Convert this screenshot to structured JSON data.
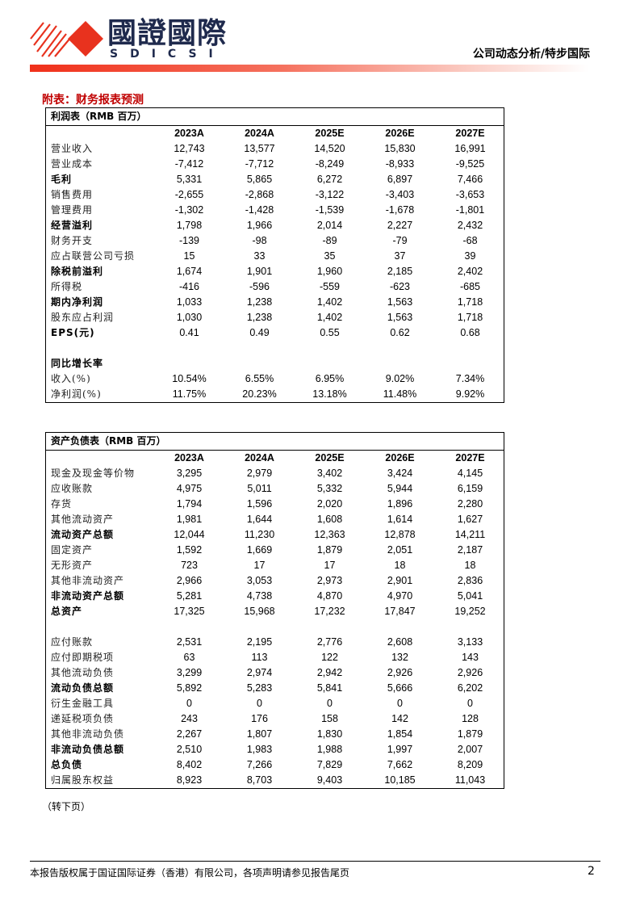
{
  "header": {
    "logo_text": "國證國際",
    "logo_subtext": "SDICSI",
    "report_type": "公司动态分析/特步国际",
    "brand_color": "#e8321e"
  },
  "section_title": "附表：财务报表预测",
  "income_statement": {
    "title": "利润表（RMB 百万）",
    "columns": [
      "2023A",
      "2024A",
      "2025E",
      "2026E",
      "2027E"
    ],
    "rows": [
      {
        "label": "营业收入",
        "bold": false,
        "values": [
          "12,743",
          "13,577",
          "14,520",
          "15,830",
          "16,991"
        ]
      },
      {
        "label": "营业成本",
        "bold": false,
        "values": [
          "-7,412",
          "-7,712",
          "-8,249",
          "-8,933",
          "-9,525"
        ]
      },
      {
        "label": "毛利",
        "bold": true,
        "values": [
          "5,331",
          "5,865",
          "6,272",
          "6,897",
          "7,466"
        ]
      },
      {
        "label": "销售费用",
        "bold": false,
        "values": [
          "-2,655",
          "-2,868",
          "-3,122",
          "-3,403",
          "-3,653"
        ]
      },
      {
        "label": "管理费用",
        "bold": false,
        "values": [
          "-1,302",
          "-1,428",
          "-1,539",
          "-1,678",
          "-1,801"
        ]
      },
      {
        "label": "经营溢利",
        "bold": true,
        "values": [
          "1,798",
          "1,966",
          "2,014",
          "2,227",
          "2,432"
        ]
      },
      {
        "label": "财务开支",
        "bold": false,
        "values": [
          "-139",
          "-98",
          "-89",
          "-79",
          "-68"
        ]
      },
      {
        "label": "应占联营公司亏损",
        "bold": false,
        "values": [
          "15",
          "33",
          "35",
          "37",
          "39"
        ]
      },
      {
        "label": "除税前溢利",
        "bold": true,
        "values": [
          "1,674",
          "1,901",
          "1,960",
          "2,185",
          "2,402"
        ]
      },
      {
        "label": "所得税",
        "bold": false,
        "values": [
          "-416",
          "-596",
          "-559",
          "-623",
          "-685"
        ]
      },
      {
        "label": "期内净利润",
        "bold": true,
        "values": [
          "1,033",
          "1,238",
          "1,402",
          "1,563",
          "1,718"
        ]
      },
      {
        "label": "股东应占利润",
        "bold": false,
        "values": [
          "1,030",
          "1,238",
          "1,402",
          "1,563",
          "1,718"
        ]
      },
      {
        "label": "EPS(元)",
        "bold": true,
        "values": [
          "0.41",
          "0.49",
          "0.55",
          "0.62",
          "0.68"
        ]
      },
      {
        "label": "",
        "bold": false,
        "values": [
          "",
          "",
          "",
          "",
          ""
        ]
      },
      {
        "label": "同比增长率",
        "bold": true,
        "values": [
          "",
          "",
          "",
          "",
          ""
        ]
      },
      {
        "label": "收入(%)",
        "bold": false,
        "values": [
          "10.54%",
          "6.55%",
          "6.95%",
          "9.02%",
          "7.34%"
        ]
      },
      {
        "label": "净利润(%)",
        "bold": false,
        "values": [
          "11.75%",
          "20.23%",
          "13.18%",
          "11.48%",
          "9.92%"
        ]
      }
    ]
  },
  "balance_sheet": {
    "title": "资产负债表（RMB 百万）",
    "columns": [
      "2023A",
      "2024A",
      "2025E",
      "2026E",
      "2027E"
    ],
    "rows": [
      {
        "label": "现金及现金等价物",
        "bold": false,
        "values": [
          "3,295",
          "2,979",
          "3,402",
          "3,424",
          "4,145"
        ]
      },
      {
        "label": "应收账款",
        "bold": false,
        "values": [
          "4,975",
          "5,011",
          "5,332",
          "5,944",
          "6,159"
        ]
      },
      {
        "label": "存货",
        "bold": false,
        "values": [
          "1,794",
          "1,596",
          "2,020",
          "1,896",
          "2,280"
        ]
      },
      {
        "label": "其他流动资产",
        "bold": false,
        "values": [
          "1,981",
          "1,644",
          "1,608",
          "1,614",
          "1,627"
        ]
      },
      {
        "label": "流动资产总额",
        "bold": true,
        "values": [
          "12,044",
          "11,230",
          "12,363",
          "12,878",
          "14,211"
        ]
      },
      {
        "label": "固定资产",
        "bold": false,
        "values": [
          "1,592",
          "1,669",
          "1,879",
          "2,051",
          "2,187"
        ]
      },
      {
        "label": "无形资产",
        "bold": false,
        "values": [
          "723",
          "17",
          "17",
          "18",
          "18"
        ]
      },
      {
        "label": "其他非流动资产",
        "bold": false,
        "values": [
          "2,966",
          "3,053",
          "2,973",
          "2,901",
          "2,836"
        ]
      },
      {
        "label": "非流动资产总额",
        "bold": true,
        "values": [
          "5,281",
          "4,738",
          "4,870",
          "4,970",
          "5,041"
        ]
      },
      {
        "label": "总资产",
        "bold": true,
        "values": [
          "17,325",
          "15,968",
          "17,232",
          "17,847",
          "19,252"
        ]
      },
      {
        "label": "",
        "bold": false,
        "values": [
          "",
          "",
          "",
          "",
          ""
        ]
      },
      {
        "label": "应付账款",
        "bold": false,
        "values": [
          "2,531",
          "2,195",
          "2,776",
          "2,608",
          "3,133"
        ]
      },
      {
        "label": "应付即期税项",
        "bold": false,
        "values": [
          "63",
          "113",
          "122",
          "132",
          "143"
        ]
      },
      {
        "label": "其他流动负债",
        "bold": false,
        "values": [
          "3,299",
          "2,974",
          "2,942",
          "2,926",
          "2,926"
        ]
      },
      {
        "label": "流动负债总额",
        "bold": true,
        "values": [
          "5,892",
          "5,283",
          "5,841",
          "5,666",
          "6,202"
        ]
      },
      {
        "label": "衍生金融工具",
        "bold": false,
        "values": [
          "0",
          "0",
          "0",
          "0",
          "0"
        ]
      },
      {
        "label": "递延税项负债",
        "bold": false,
        "values": [
          "243",
          "176",
          "158",
          "142",
          "128"
        ]
      },
      {
        "label": "其他非流动负债",
        "bold": false,
        "values": [
          "2,267",
          "1,807",
          "1,830",
          "1,854",
          "1,879"
        ]
      },
      {
        "label": "非流动负债总额",
        "bold": true,
        "values": [
          "2,510",
          "1,983",
          "1,988",
          "1,997",
          "2,007"
        ]
      },
      {
        "label": "总负债",
        "bold": true,
        "values": [
          "8,402",
          "7,266",
          "7,829",
          "7,662",
          "8,209"
        ]
      },
      {
        "label": "归属股东权益",
        "bold": false,
        "values": [
          "8,923",
          "8,703",
          "9,403",
          "10,185",
          "11,043"
        ]
      }
    ]
  },
  "continued_note": "（转下页）",
  "footer": {
    "copyright": "本报告版权属于国证国际证券（香港）有限公司，各项声明请参见报告尾页",
    "page_number": "2"
  }
}
